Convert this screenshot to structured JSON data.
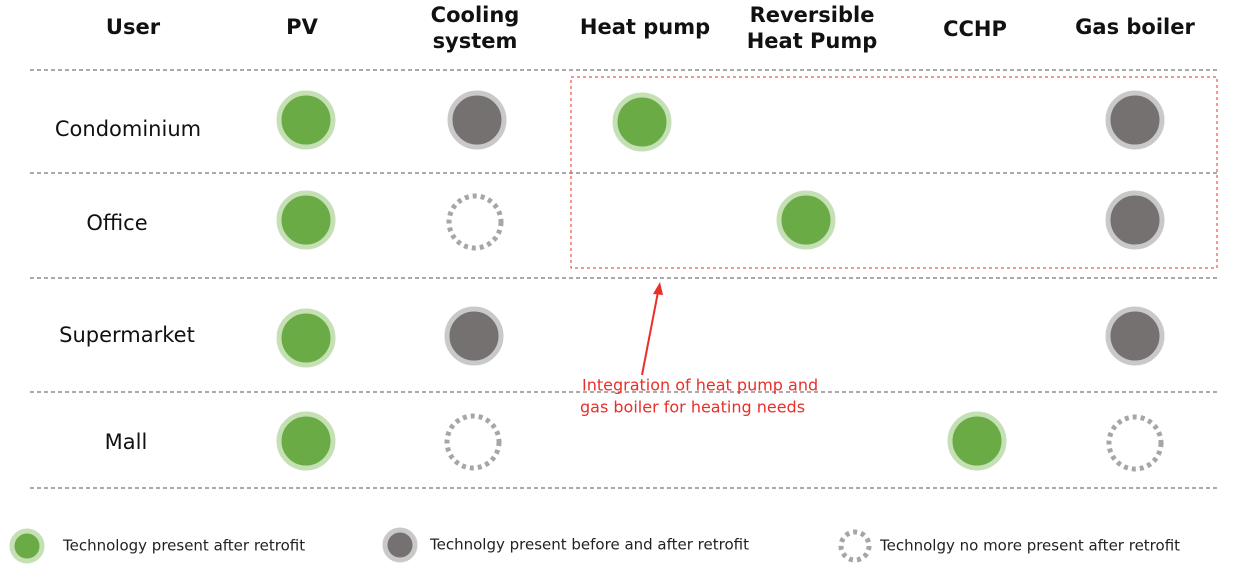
{
  "header": {
    "columns": [
      [
        "User"
      ],
      [
        "PV"
      ],
      [
        "Cooling",
        "system"
      ],
      [
        "Heat pump"
      ],
      [
        "Reversible",
        "Heat Pump"
      ],
      [
        "CCHP"
      ],
      [
        "Gas boiler"
      ]
    ]
  },
  "rows": [
    "Condominium",
    "Office",
    "Supermarket",
    "Mall"
  ],
  "annotation": [
    "Integration of heat pump and",
    "gas boiler for heating needs"
  ],
  "legend": [
    "Technology present after retrofit",
    "Technolgy present before and after retrofit",
    "Technolgy no more present after retrofit"
  ]
}
